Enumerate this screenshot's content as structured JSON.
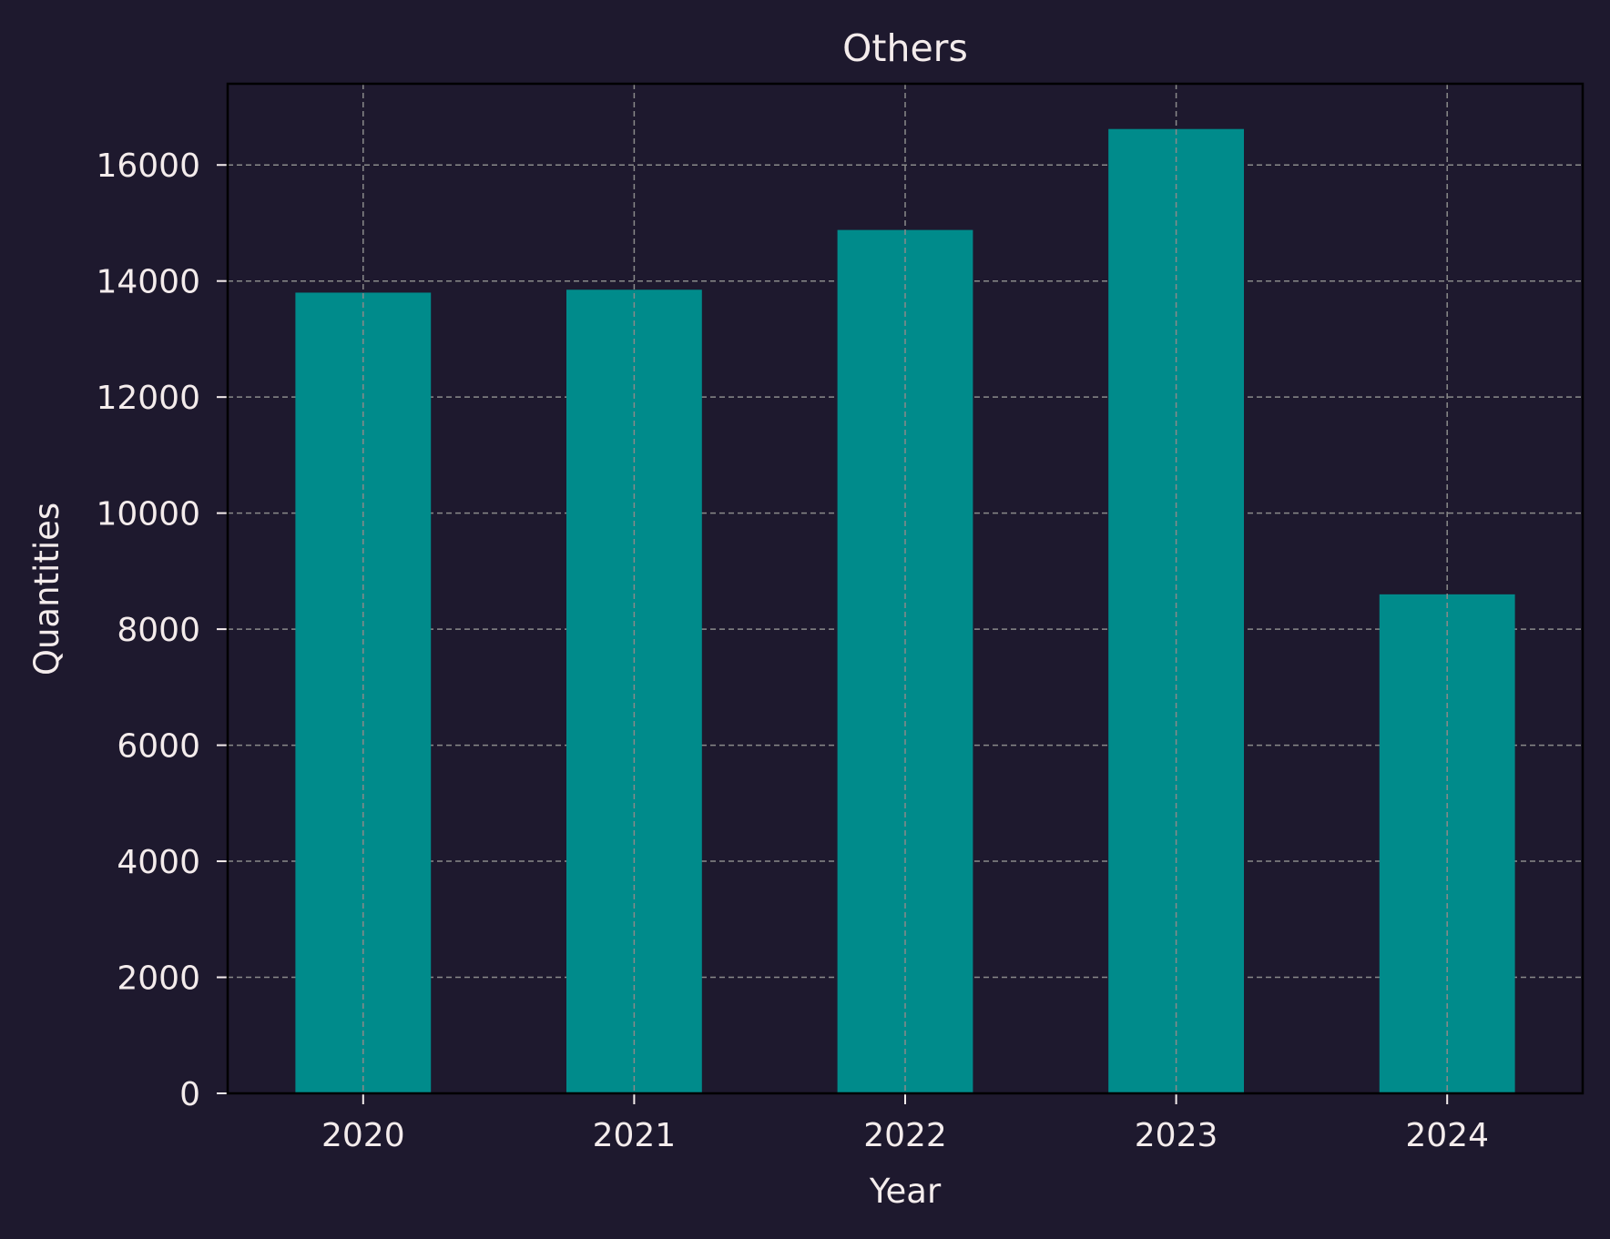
{
  "chart_data": {
    "type": "bar",
    "title": "Others",
    "xlabel": "Year",
    "ylabel": "Quantities",
    "categories": [
      "2020",
      "2021",
      "2022",
      "2023",
      "2024"
    ],
    "series": [
      {
        "values": [
          13800,
          13850,
          14880,
          16620,
          8600
        ]
      }
    ],
    "ylim": [
      0,
      17400
    ],
    "yticks": [
      0,
      2000,
      4000,
      6000,
      8000,
      10000,
      12000,
      14000,
      16000
    ],
    "grid": true,
    "colors": {
      "background": "#1e192e",
      "bar": "#008b8b",
      "text": "#f4ecec",
      "grid": "#8a8a8a",
      "frame": "#000000"
    }
  }
}
